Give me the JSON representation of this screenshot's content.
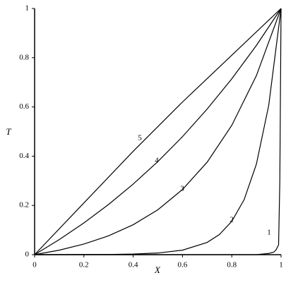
{
  "chart_data": {
    "type": "line",
    "x_label": "X",
    "y_label": "T",
    "xlim": [
      0,
      1
    ],
    "ylim": [
      0,
      1
    ],
    "xticks": [
      0,
      0.2,
      0.4,
      0.6,
      0.8,
      1
    ],
    "yticks": [
      0,
      0.2,
      0.4,
      0.6,
      0.8,
      1
    ],
    "series": [
      {
        "name": "1",
        "color": "#000000",
        "x": [
          0,
          0.5,
          0.9,
          0.95,
          0.97,
          0.98,
          0.99,
          0.995,
          1
        ],
        "values": [
          0,
          0,
          0,
          0.005,
          0.01,
          0.02,
          0.04,
          0.3,
          1
        ]
      },
      {
        "name": "2",
        "color": "#000000",
        "x": [
          0,
          0.3,
          0.4,
          0.5,
          0.6,
          0.7,
          0.75,
          0.8,
          0.85,
          0.9,
          0.95,
          1
        ],
        "values": [
          0,
          0.0009,
          0.0025,
          0.0067,
          0.0183,
          0.0497,
          0.082,
          0.1353,
          0.2231,
          0.3679,
          0.6065,
          1
        ]
      },
      {
        "name": "3",
        "color": "#000000",
        "x": [
          0,
          0.1,
          0.2,
          0.3,
          0.4,
          0.5,
          0.6,
          0.7,
          0.8,
          0.9,
          1
        ],
        "values": [
          0,
          0.0183,
          0.0431,
          0.0765,
          0.1216,
          0.1824,
          0.2646,
          0.3755,
          0.5252,
          0.7273,
          1
        ]
      },
      {
        "name": "4",
        "color": "#000000",
        "x": [
          0,
          0.1,
          0.2,
          0.3,
          0.4,
          0.5,
          0.6,
          0.7,
          0.8,
          0.9,
          1
        ],
        "values": [
          0,
          0.0612,
          0.1289,
          0.2038,
          0.2868,
          0.378,
          0.4793,
          0.5914,
          0.7141,
          0.85,
          1
        ]
      },
      {
        "name": "5",
        "color": "#000000",
        "x": [
          0,
          0.2,
          0.4,
          0.6,
          0.8,
          1
        ],
        "values": [
          0,
          0.21,
          0.42,
          0.62,
          0.81,
          1
        ]
      }
    ]
  }
}
